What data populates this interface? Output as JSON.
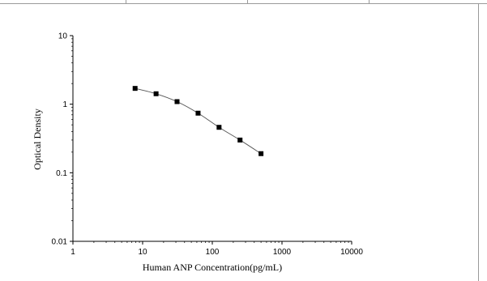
{
  "chart_data": {
    "type": "scatter",
    "xlabel": "Human ANP Concentration(pg/mL)",
    "ylabel": "Optical Density",
    "xscale": "log",
    "yscale": "log",
    "xlim": [
      1,
      10000
    ],
    "ylim": [
      0.01,
      10
    ],
    "x_ticks": [
      "1",
      "10",
      "100",
      "1000",
      "10000"
    ],
    "y_ticks": [
      "0.01",
      "0.1",
      "1",
      "10"
    ],
    "grid": false,
    "legend": "none",
    "series": [
      {
        "x": [
          7.8,
          15.6,
          31.2,
          62.5,
          125,
          250,
          500
        ],
        "y": [
          1.7,
          1.42,
          1.09,
          0.74,
          0.46,
          0.3,
          0.19
        ],
        "marker": "square",
        "line": "smooth",
        "color": "#000000"
      }
    ]
  }
}
